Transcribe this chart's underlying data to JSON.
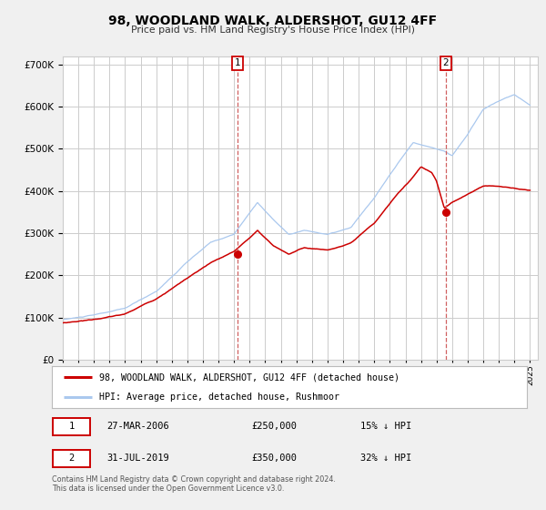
{
  "title": "98, WOODLAND WALK, ALDERSHOT, GU12 4FF",
  "subtitle": "Price paid vs. HM Land Registry's House Price Index (HPI)",
  "ylim": [
    0,
    720000
  ],
  "xlim_start": 1995.0,
  "xlim_end": 2025.5,
  "grid_color": "#cccccc",
  "hpi_color": "#aac8ee",
  "price_color": "#cc0000",
  "marker1_date": 2006.23,
  "marker1_price": 250000,
  "marker2_date": 2019.58,
  "marker2_price": 350000,
  "marker1_text1": "27-MAR-2006",
  "marker1_text2": "£250,000",
  "marker1_text3": "15% ↓ HPI",
  "marker2_text1": "31-JUL-2019",
  "marker2_text2": "£350,000",
  "marker2_text3": "32% ↓ HPI",
  "legend_line1": "98, WOODLAND WALK, ALDERSHOT, GU12 4FF (detached house)",
  "legend_line2": "HPI: Average price, detached house, Rushmoor",
  "footnote": "Contains HM Land Registry data © Crown copyright and database right 2024.\nThis data is licensed under the Open Government Licence v3.0.",
  "background_color": "#f0f0f0",
  "plot_bg_color": "#ffffff"
}
